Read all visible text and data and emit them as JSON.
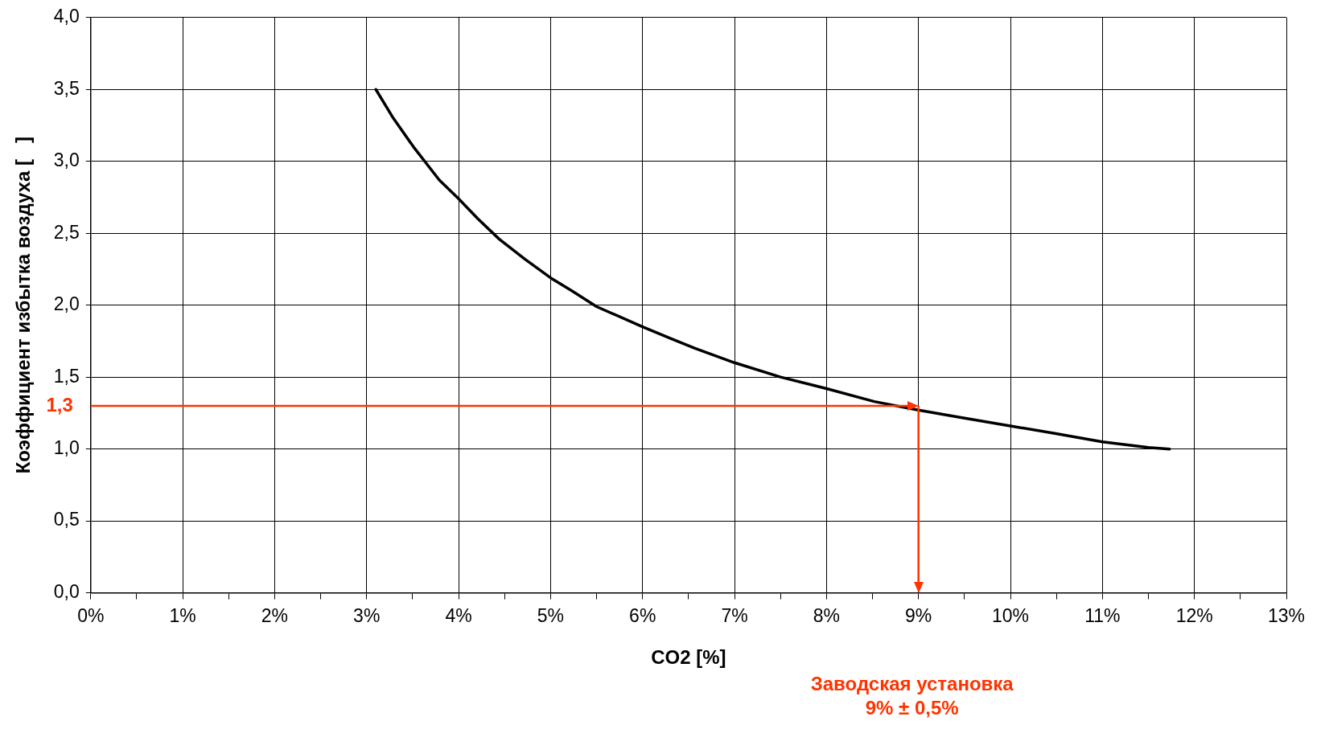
{
  "chart_data": {
    "type": "line",
    "xlabel": "CO2 [%]",
    "ylabel": "Коэффициент избытка воздуха [   ]",
    "series": [
      {
        "color": "#000000",
        "x": [
          3.1,
          3.29,
          3.51,
          3.79,
          4.0,
          4.21,
          4.44,
          4.72,
          5.0,
          5.23,
          5.5,
          6.0,
          6.3,
          6.57,
          7.0,
          7.5,
          8.0,
          8.52,
          9.0,
          9.45,
          10.0,
          10.47,
          11.0,
          11.5,
          11.73
        ],
        "values": [
          3.5,
          3.3,
          3.1,
          2.87,
          2.74,
          2.6,
          2.46,
          2.32,
          2.19,
          2.1,
          1.99,
          1.85,
          1.77,
          1.7,
          1.6,
          1.5,
          1.42,
          1.33,
          1.27,
          1.22,
          1.16,
          1.11,
          1.05,
          1.01,
          1.0
        ]
      }
    ],
    "xlim": [
      0,
      13
    ],
    "xticks": [
      {
        "value": 0,
        "label": "0%"
      },
      {
        "value": 0.5,
        "label": null
      },
      {
        "value": 1,
        "label": "1%"
      },
      {
        "value": 1.5,
        "label": null
      },
      {
        "value": 2,
        "label": "2%"
      },
      {
        "value": 2.5,
        "label": null
      },
      {
        "value": 3,
        "label": "3%"
      },
      {
        "value": 3.5,
        "label": null
      },
      {
        "value": 4,
        "label": "4%"
      },
      {
        "value": 4.5,
        "label": null
      },
      {
        "value": 5,
        "label": "5%"
      },
      {
        "value": 5.5,
        "label": null
      },
      {
        "value": 6,
        "label": "6%"
      },
      {
        "value": 6.5,
        "label": null
      },
      {
        "value": 7,
        "label": "7%"
      },
      {
        "value": 7.5,
        "label": null
      },
      {
        "value": 8,
        "label": "8%"
      },
      {
        "value": 8.5,
        "label": null
      },
      {
        "value": 9,
        "label": "9%"
      },
      {
        "value": 9.5,
        "label": null
      },
      {
        "value": 10,
        "label": "10%"
      },
      {
        "value": 10.5,
        "label": null
      },
      {
        "value": 11,
        "label": "11%"
      },
      {
        "value": 11.5,
        "label": null
      },
      {
        "value": 12,
        "label": "12%"
      },
      {
        "value": 12.5,
        "label": null
      },
      {
        "value": 13,
        "label": "13%"
      }
    ],
    "ylim": [
      0,
      4
    ],
    "yticks": [
      {
        "value": 0,
        "label": "0,0"
      },
      {
        "value": 0.5,
        "label": "0,5"
      },
      {
        "value": 1,
        "label": "1,0"
      },
      {
        "value": 1.5,
        "label": "1,5"
      },
      {
        "value": 2,
        "label": "2,0"
      },
      {
        "value": 2.5,
        "label": "2,5"
      },
      {
        "value": 3,
        "label": "3,0"
      },
      {
        "value": 3.5,
        "label": "3,5"
      },
      {
        "value": 4,
        "label": "4,0"
      }
    ],
    "ref_lines": [
      {
        "axis": "y",
        "value": 1.3,
        "label": "1,3",
        "color": "#ff3300"
      },
      {
        "axis": "x",
        "value": 9,
        "label": "Заводская установка\n9% ± 0,5%",
        "color": "#ff3300"
      }
    ],
    "grid": true,
    "legend": false,
    "marker": "none",
    "line_style": "solid"
  }
}
